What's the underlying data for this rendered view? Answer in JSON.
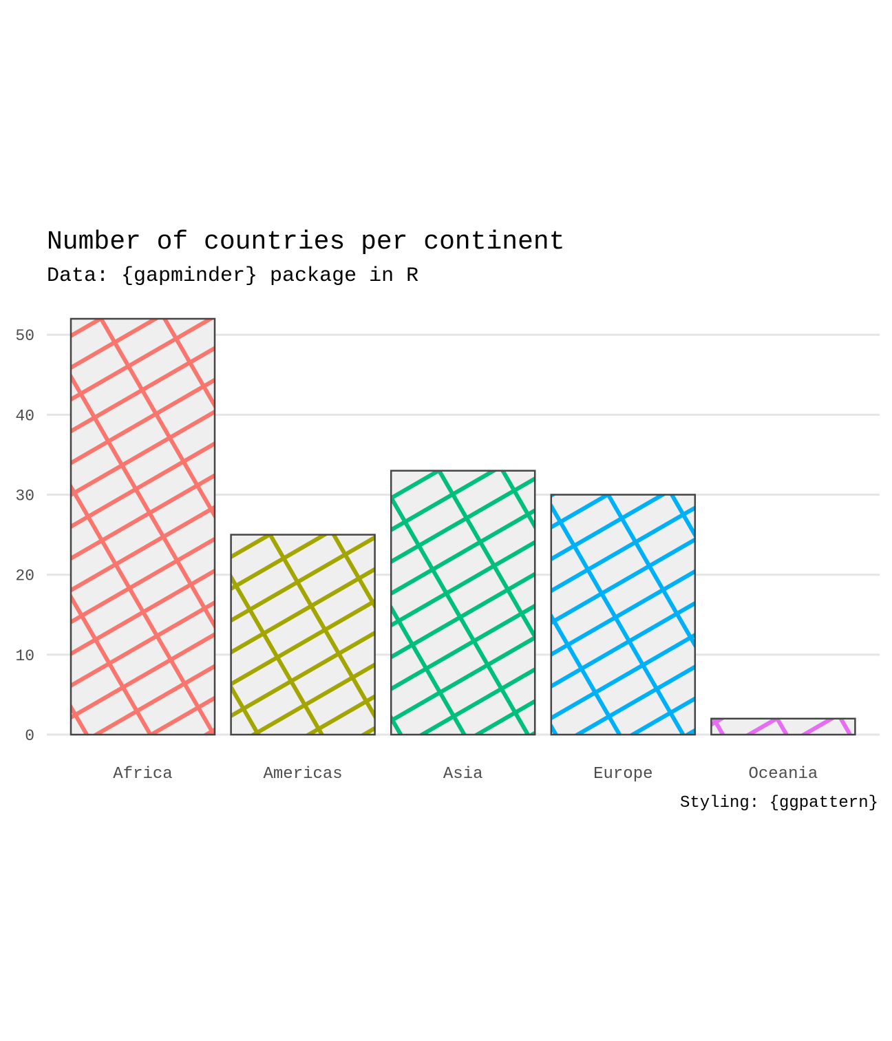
{
  "chart_data": {
    "type": "bar",
    "title": "Number of countries per continent",
    "subtitle": "Data: {gapminder} package in R",
    "caption": "Styling: {ggpattern}",
    "xlabel": "",
    "ylabel": "",
    "categories": [
      "Africa",
      "Americas",
      "Asia",
      "Europe",
      "Oceania"
    ],
    "values": [
      52,
      25,
      33,
      30,
      2
    ],
    "colors": [
      "#F8766D",
      "#A3A500",
      "#00BF7D",
      "#00B0F6",
      "#E76BF3"
    ],
    "ylim": [
      0,
      52
    ],
    "yticks": [
      0,
      10,
      20,
      30,
      40,
      50
    ],
    "ytick_labels": [
      "0",
      "10",
      "20",
      "30",
      "40",
      "50"
    ],
    "grid": "horizontal",
    "legend": "none",
    "pattern": "crosshatch",
    "bar_fill": "#efefef",
    "bar_outline": "#444444"
  }
}
